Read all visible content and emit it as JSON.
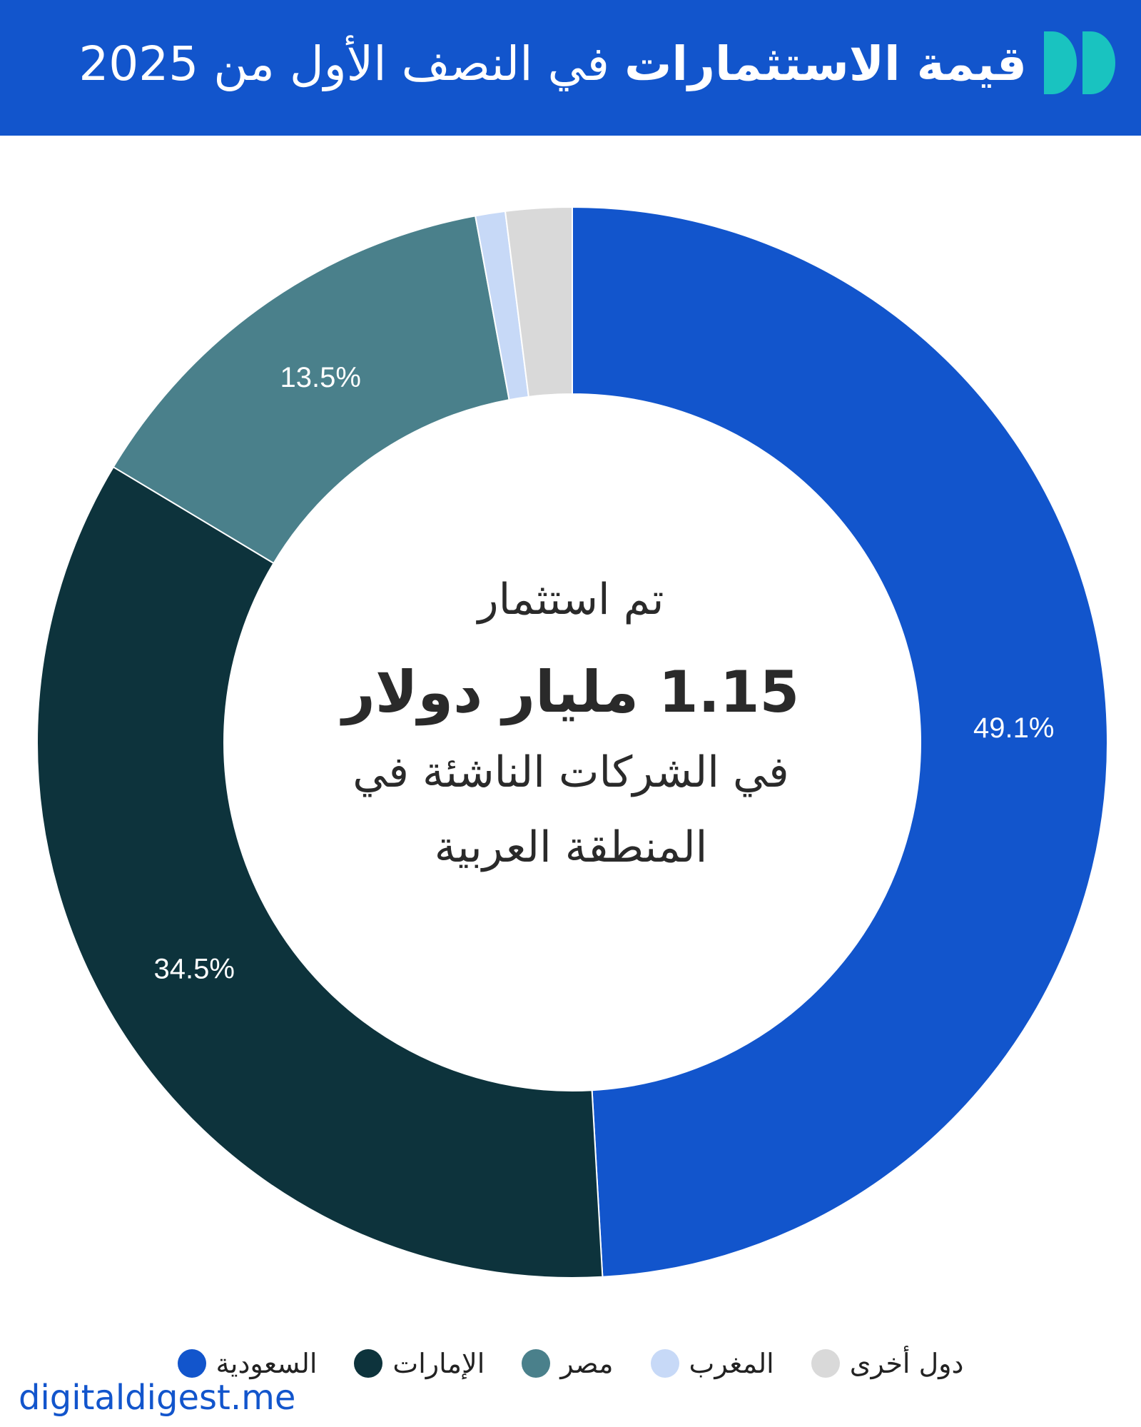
{
  "header": {
    "title_bold": "قيمة الاستثمارات",
    "title_rest": " في النصف الأول من 2025",
    "logo_icon": "digital-digest-logo-icon",
    "colors": {
      "background": "#1255cc",
      "logo": "#19c3c0"
    }
  },
  "center": {
    "line1": "تم استثمار",
    "line2": "1.15 مليار دولار",
    "line3": "في الشركات الناشئة في المنطقة العربية"
  },
  "chart_data": {
    "type": "pie",
    "donut": true,
    "categories": [
      "السعودية",
      "الإمارات",
      "مصر",
      "المغرب",
      "دول أخرى"
    ],
    "values": [
      49.1,
      34.5,
      13.5,
      0.9,
      2.0
    ],
    "labels": [
      "49.1%",
      "34.5%",
      "13.5%",
      "",
      ""
    ],
    "colors": [
      "#1255cc",
      "#0d333c",
      "#4a808b",
      "#c7d9f7",
      "#d9d9d9"
    ],
    "legend_position": "bottom"
  },
  "footer": {
    "site": "digitaldigest.me"
  }
}
